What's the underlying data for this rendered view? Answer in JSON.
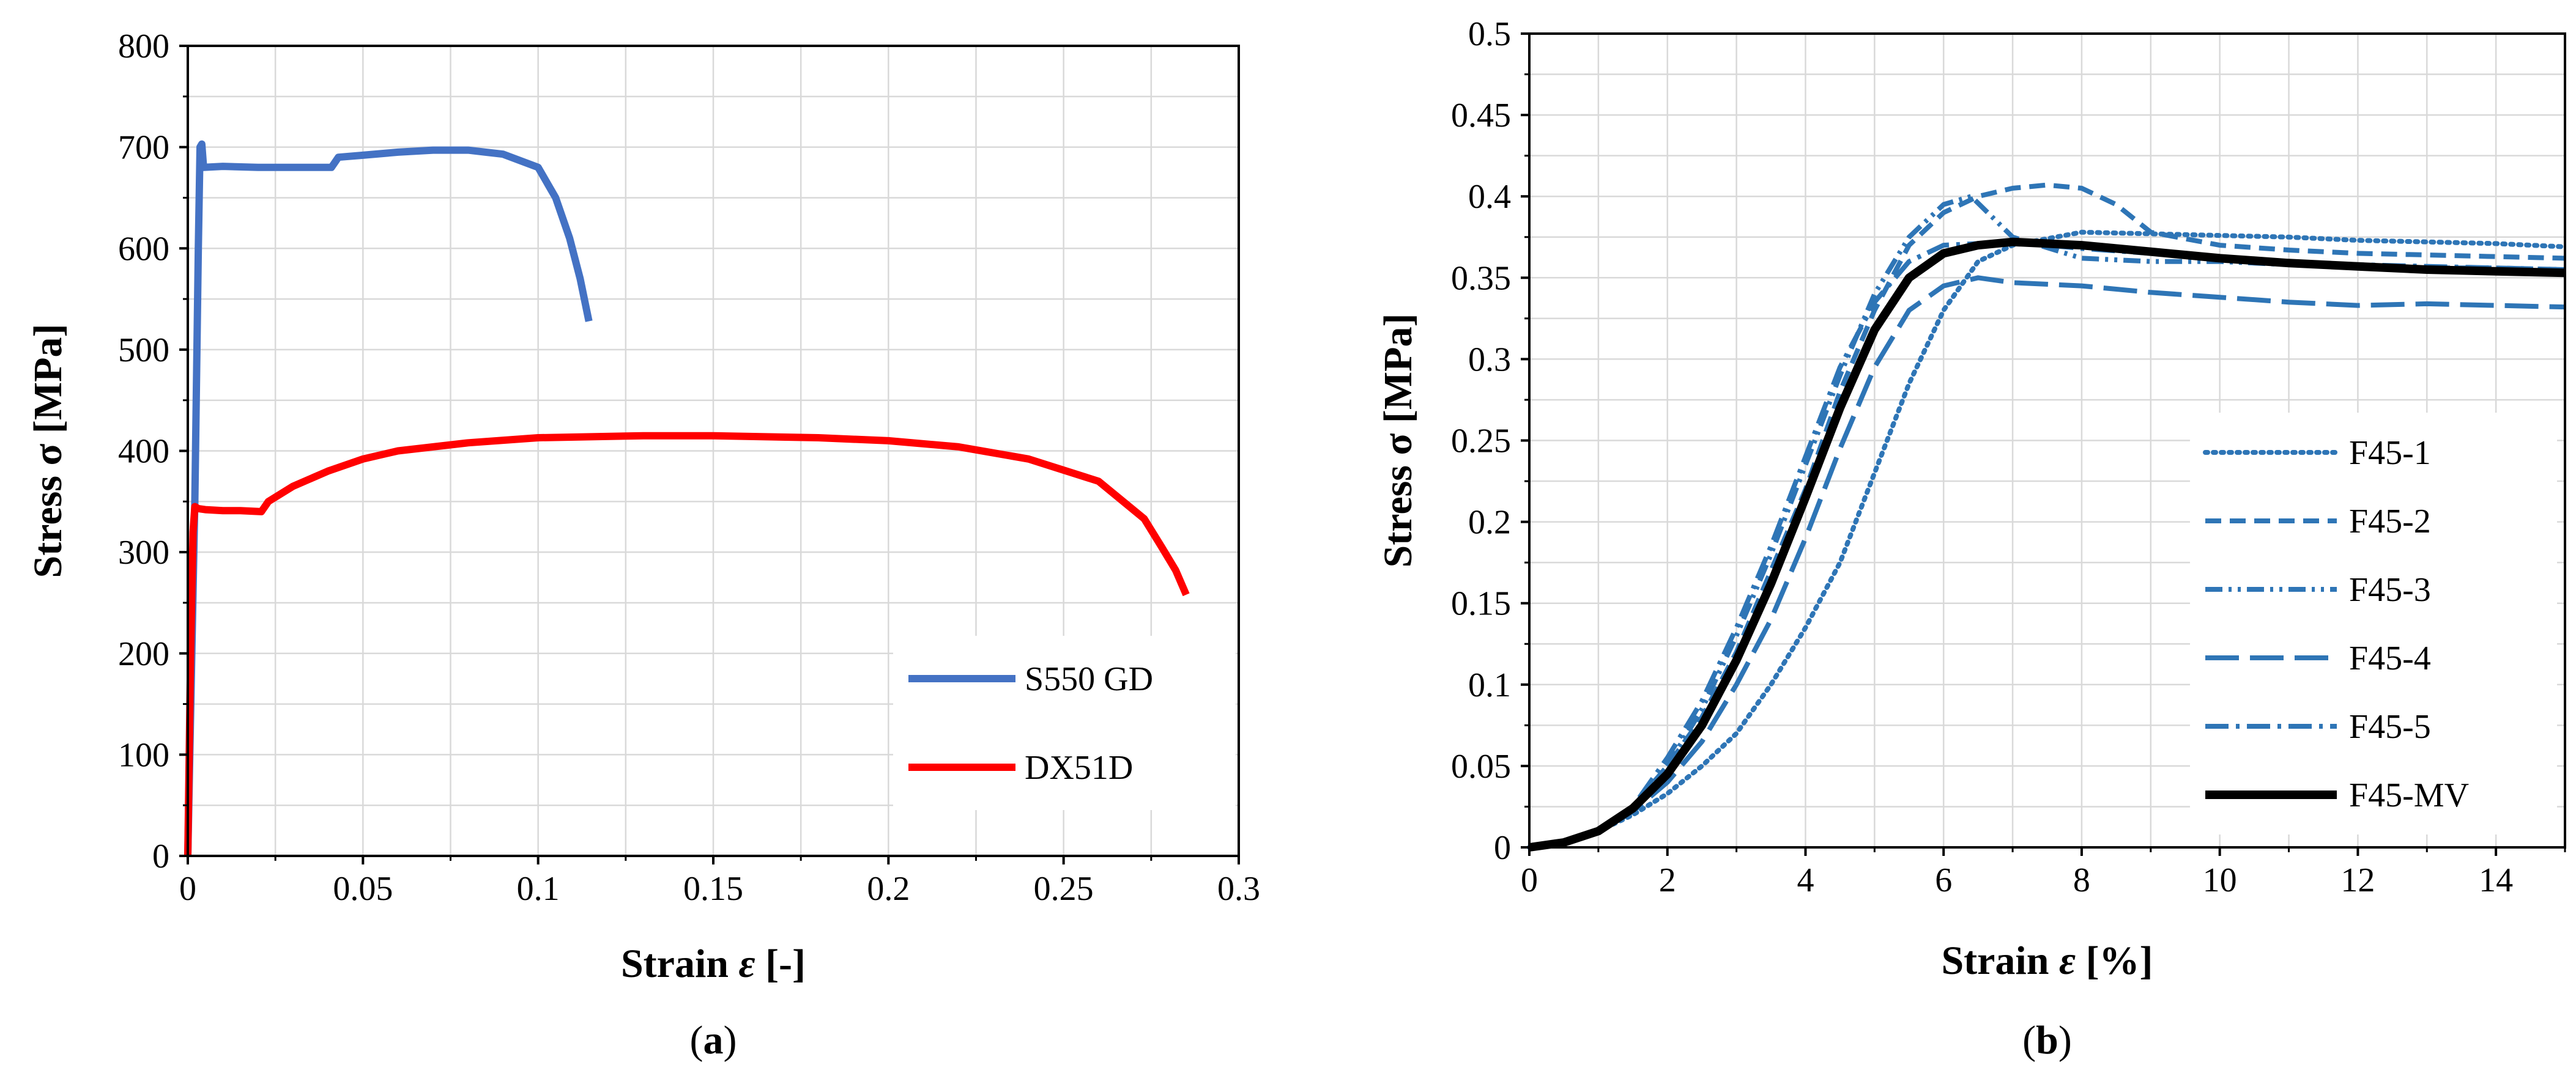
{
  "chart_data": [
    {
      "type": "line",
      "title": "",
      "caption_open": "(",
      "caption_letter": "a",
      "caption_close": ")",
      "xlabel_main": "Strain ",
      "xlabel_symbol": "ε",
      "xlabel_unit": " [-]",
      "ylabel": "Stress σ [MPa]",
      "xlim": [
        0,
        0.3
      ],
      "ylim": [
        0,
        800
      ],
      "xticks": [
        0,
        0.05,
        0.1,
        0.15,
        0.2,
        0.25,
        0.3
      ],
      "xtick_labels": [
        "0",
        "0.05",
        "0.1",
        "0.15",
        "0.2",
        "0.25",
        "0.3"
      ],
      "yticks": [
        0,
        100,
        200,
        300,
        400,
        500,
        600,
        700,
        800
      ],
      "ytick_labels": [
        "0",
        "100",
        "200",
        "300",
        "400",
        "500",
        "600",
        "700",
        "800"
      ],
      "grid": true,
      "legend_position": "bottom-right",
      "series": [
        {
          "name": "S550 GD",
          "color": "#4472c4",
          "style": "solid",
          "x": [
            0,
            0.002,
            0.003,
            0.0035,
            0.004,
            0.0045,
            0.01,
            0.02,
            0.03,
            0.041,
            0.043,
            0.05,
            0.06,
            0.07,
            0.08,
            0.09,
            0.1,
            0.105,
            0.109,
            0.112,
            0.1145
          ],
          "y": [
            0,
            350,
            600,
            700,
            703,
            680,
            681,
            680,
            680,
            680,
            690,
            692,
            695,
            697,
            697,
            693,
            680,
            650,
            610,
            570,
            528
          ]
        },
        {
          "name": "DX51D",
          "color": "#ff0000",
          "style": "solid",
          "x": [
            0,
            0.0008,
            0.0015,
            0.002,
            0.003,
            0.005,
            0.01,
            0.015,
            0.021,
            0.023,
            0.03,
            0.04,
            0.05,
            0.06,
            0.08,
            0.1,
            0.13,
            0.15,
            0.18,
            0.2,
            0.22,
            0.24,
            0.26,
            0.273,
            0.278,
            0.282,
            0.285
          ],
          "y": [
            0,
            200,
            320,
            345,
            343,
            342,
            341,
            341,
            340,
            350,
            365,
            380,
            392,
            400,
            408,
            413,
            415,
            415,
            413,
            410,
            404,
            392,
            370,
            333,
            305,
            282,
            258
          ]
        }
      ]
    },
    {
      "type": "line",
      "title": "",
      "caption_open": "(",
      "caption_letter": "b",
      "caption_close": ")",
      "xlabel_main": "Strain ",
      "xlabel_symbol": "ε",
      "xlabel_unit": "  [%]",
      "ylabel": "Stress σ [MPa]",
      "xlim": [
        0,
        15
      ],
      "ylim": [
        0,
        0.5
      ],
      "xticks": [
        0,
        2,
        4,
        6,
        8,
        10,
        12,
        14
      ],
      "xtick_labels": [
        "0",
        "2",
        "4",
        "6",
        "8",
        "10",
        "12",
        "14"
      ],
      "yticks": [
        0,
        0.05,
        0.1,
        0.15,
        0.2,
        0.25,
        0.3,
        0.35,
        0.4,
        0.45,
        0.5
      ],
      "ytick_labels": [
        "0",
        "0.05",
        "0.1",
        "0.15",
        "0.2",
        "0.25",
        "0.3",
        "0.35",
        "0.4",
        "0.45",
        "0.5"
      ],
      "grid": true,
      "legend_position": "bottom-right",
      "series": [
        {
          "name": "F45-1",
          "color": "#2e75b6",
          "style": "dotted",
          "x": [
            0,
            0.5,
            1,
            1.5,
            2,
            2.5,
            3,
            3.5,
            4,
            4.5,
            5,
            5.5,
            6,
            6.5,
            7,
            8,
            9,
            10,
            11,
            12,
            13,
            14,
            15
          ],
          "y": [
            0,
            0.003,
            0.01,
            0.02,
            0.033,
            0.05,
            0.07,
            0.1,
            0.135,
            0.175,
            0.23,
            0.285,
            0.33,
            0.36,
            0.37,
            0.378,
            0.377,
            0.376,
            0.375,
            0.373,
            0.372,
            0.371,
            0.369
          ]
        },
        {
          "name": "F45-2",
          "color": "#2e75b6",
          "style": "dash",
          "x": [
            0,
            0.5,
            1,
            1.5,
            2,
            2.5,
            3,
            3.5,
            4,
            4.5,
            5,
            5.5,
            6,
            6.5,
            7,
            7.5,
            8,
            8.5,
            9,
            10,
            11,
            12,
            13,
            14,
            15
          ],
          "y": [
            0,
            0.003,
            0.01,
            0.025,
            0.05,
            0.08,
            0.12,
            0.17,
            0.22,
            0.28,
            0.33,
            0.37,
            0.39,
            0.4,
            0.405,
            0.407,
            0.405,
            0.395,
            0.378,
            0.37,
            0.367,
            0.365,
            0.364,
            0.363,
            0.362
          ]
        },
        {
          "name": "F45-3",
          "color": "#2e75b6",
          "style": "dashdotdot",
          "x": [
            0,
            0.5,
            1,
            1.5,
            2,
            2.5,
            3,
            3.5,
            4,
            4.5,
            5,
            5.5,
            6,
            6.4,
            7,
            8,
            9,
            10,
            11,
            12,
            13,
            14,
            15
          ],
          "y": [
            0,
            0.003,
            0.01,
            0.025,
            0.05,
            0.085,
            0.13,
            0.18,
            0.235,
            0.29,
            0.34,
            0.375,
            0.395,
            0.4,
            0.375,
            0.362,
            0.36,
            0.36,
            0.358,
            0.357,
            0.356,
            0.356,
            0.355
          ]
        },
        {
          "name": "F45-4",
          "color": "#2e75b6",
          "style": "longdash",
          "x": [
            0,
            0.5,
            1,
            1.5,
            2,
            2.5,
            3,
            3.5,
            4,
            4.5,
            5,
            5.5,
            6,
            6.5,
            7,
            8,
            9,
            10,
            11,
            12,
            13,
            14,
            15
          ],
          "y": [
            0,
            0.003,
            0.01,
            0.022,
            0.04,
            0.065,
            0.1,
            0.14,
            0.19,
            0.245,
            0.295,
            0.33,
            0.345,
            0.35,
            0.347,
            0.345,
            0.341,
            0.338,
            0.335,
            0.333,
            0.334,
            0.333,
            0.332
          ]
        },
        {
          "name": "F45-5",
          "color": "#2e75b6",
          "style": "dashdot",
          "x": [
            0,
            0.5,
            1,
            1.5,
            2,
            2.5,
            3,
            3.5,
            4,
            4.5,
            5,
            5.5,
            6,
            7,
            8,
            9,
            10,
            11,
            12,
            13,
            14,
            15
          ],
          "y": [
            0,
            0.003,
            0.01,
            0.025,
            0.055,
            0.09,
            0.135,
            0.185,
            0.24,
            0.295,
            0.335,
            0.36,
            0.37,
            0.372,
            0.368,
            0.365,
            0.362,
            0.36,
            0.358,
            0.357,
            0.356,
            0.355
          ]
        },
        {
          "name": "F45-MV",
          "color": "#000000",
          "style": "solid",
          "x": [
            0,
            0.5,
            1,
            1.5,
            2,
            2.5,
            3,
            3.5,
            4,
            4.5,
            5,
            5.5,
            6,
            6.5,
            7,
            8,
            9,
            10,
            11,
            12,
            13,
            14,
            15
          ],
          "y": [
            0,
            0.003,
            0.01,
            0.024,
            0.045,
            0.075,
            0.115,
            0.162,
            0.215,
            0.27,
            0.318,
            0.35,
            0.365,
            0.37,
            0.372,
            0.37,
            0.366,
            0.362,
            0.359,
            0.357,
            0.355,
            0.354,
            0.353
          ]
        }
      ]
    }
  ]
}
